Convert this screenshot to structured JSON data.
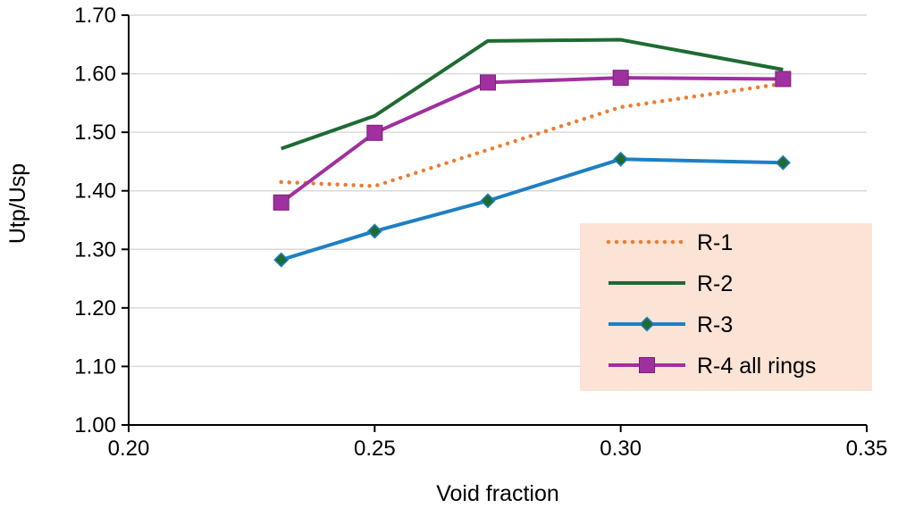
{
  "chart_data": {
    "type": "line",
    "title": "",
    "xlabel": "Void fraction",
    "ylabel": "Utp/Usp",
    "xlim": [
      0.2,
      0.35
    ],
    "ylim": [
      1.0,
      1.7
    ],
    "x_ticks": [
      0.2,
      0.25,
      0.3,
      0.35
    ],
    "x_tick_labels": [
      "0.20",
      "0.25",
      "0.30",
      "0.35"
    ],
    "y_ticks": [
      1.0,
      1.1,
      1.2,
      1.3,
      1.4,
      1.5,
      1.6,
      1.7
    ],
    "y_tick_labels": [
      "1.00",
      "1.10",
      "1.20",
      "1.30",
      "1.40",
      "1.50",
      "1.60",
      "1.70"
    ],
    "grid": "horizontal",
    "legend_position": "lower-right",
    "series": [
      {
        "name": "R-1",
        "color": "#ed7d31",
        "style": "dotted",
        "marker": "none",
        "x": [
          0.231,
          0.25,
          0.273,
          0.3,
          0.333
        ],
        "y": [
          1.415,
          1.408,
          1.47,
          1.543,
          1.583
        ]
      },
      {
        "name": "R-2",
        "color": "#1e6b32",
        "style": "solid",
        "marker": "none",
        "x": [
          0.231,
          0.25,
          0.273,
          0.3,
          0.333
        ],
        "y": [
          1.472,
          1.528,
          1.656,
          1.658,
          1.607
        ]
      },
      {
        "name": "R-3",
        "color": "#1f7fc4",
        "style": "solid",
        "marker": "diamond",
        "marker_color": "#1e6b32",
        "x": [
          0.231,
          0.25,
          0.273,
          0.3,
          0.333
        ],
        "y": [
          1.282,
          1.331,
          1.383,
          1.454,
          1.448
        ]
      },
      {
        "name": "R-4 all rings",
        "color": "#a0309f",
        "style": "solid",
        "marker": "square",
        "marker_color": "#a0309f",
        "x": [
          0.231,
          0.25,
          0.273,
          0.3,
          0.333
        ],
        "y": [
          1.38,
          1.499,
          1.585,
          1.593,
          1.591
        ]
      }
    ],
    "colors": {
      "axis": "#000000",
      "grid": "#d9d9d9",
      "legend_background": "#fbe3d6"
    }
  }
}
